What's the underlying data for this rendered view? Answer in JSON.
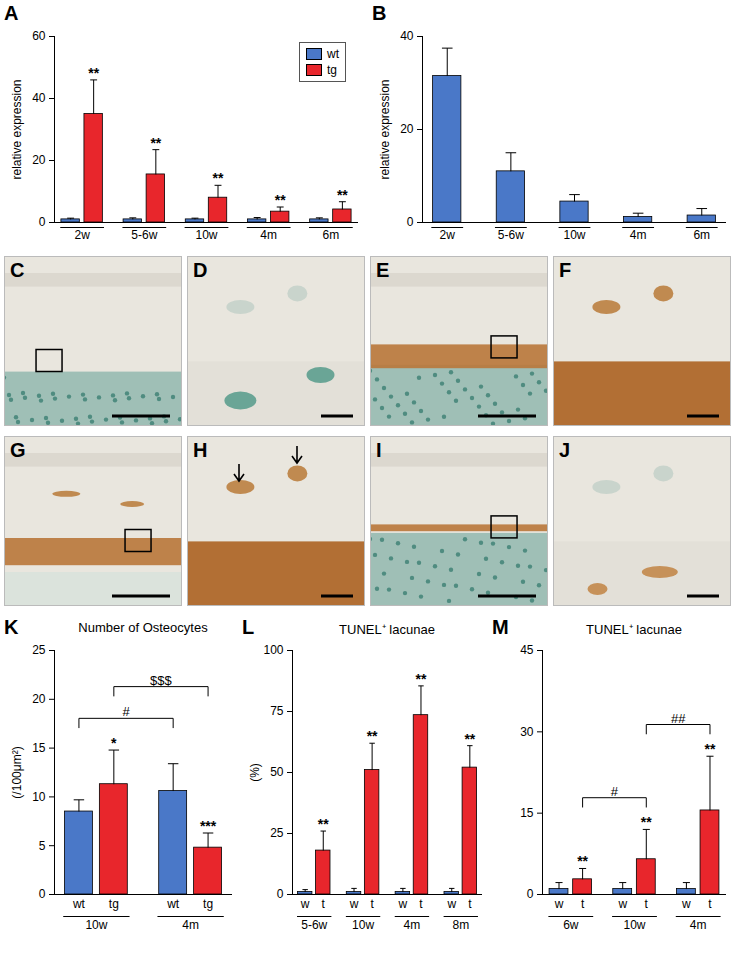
{
  "chart_data": [
    {
      "panel": "A",
      "type": "bar",
      "y_label": "relative expression",
      "categories": [
        "2w",
        "5-6w",
        "10w",
        "4m",
        "6m"
      ],
      "ylim": [
        0,
        60
      ],
      "yticks": [
        0,
        20,
        40,
        60
      ],
      "legend": "top-right",
      "series": [
        {
          "name": "wt",
          "color": "#4a78c8",
          "values": [
            1,
            1,
            1,
            1,
            1
          ],
          "errors": [
            0.4,
            0.5,
            0.4,
            0.6,
            0.5
          ]
        },
        {
          "name": "tg",
          "color": "#e8262c",
          "values": [
            35,
            15.5,
            8,
            3.5,
            4.2
          ],
          "errors": [
            11,
            8,
            4,
            1.5,
            2.5
          ],
          "annotations": [
            "**",
            "**",
            "**",
            "**",
            "**"
          ]
        }
      ]
    },
    {
      "panel": "B",
      "type": "bar",
      "y_label": "relative expression",
      "categories": [
        "2w",
        "5-6w",
        "10w",
        "4m",
        "6m"
      ],
      "ylim": [
        0,
        40
      ],
      "yticks": [
        0,
        20,
        40
      ],
      "series": [
        {
          "color": "#4a78c8",
          "values": [
            31.5,
            11,
            4.5,
            1.2,
            1.5
          ],
          "errors": [
            6,
            4,
            1.5,
            0.8,
            1.5
          ]
        }
      ]
    },
    {
      "panel": "K",
      "type": "bar",
      "title": "Number of Osteocytes",
      "y_label": "(/100μm²)",
      "categories": [
        "10w",
        "4m"
      ],
      "ylim": [
        0,
        25
      ],
      "yticks": [
        0,
        5,
        10,
        15,
        20,
        25
      ],
      "series": [
        {
          "name": "wt",
          "color": "#4a78c8",
          "values": [
            8.5,
            10.6
          ],
          "errors": [
            1.2,
            2.8
          ]
        },
        {
          "name": "tg",
          "color": "#e8262c",
          "values": [
            11.3,
            4.8
          ],
          "errors": [
            3.5,
            1.5
          ],
          "annotations": [
            "*",
            "***"
          ]
        }
      ],
      "comparisons": [
        {
          "from": [
            "wt",
            "10w"
          ],
          "to": [
            "wt",
            "4m"
          ],
          "label": "#"
        },
        {
          "from": [
            "tg",
            "10w"
          ],
          "to": [
            "tg",
            "4m"
          ],
          "label": "$$$"
        }
      ]
    },
    {
      "panel": "L",
      "type": "bar",
      "title": "TUNEL⁺ lacunae",
      "y_label": "(%)",
      "categories": [
        "5-6w",
        "10w",
        "4m",
        "8m"
      ],
      "ylim": [
        0,
        100
      ],
      "yticks": [
        0,
        25,
        50,
        75,
        100
      ],
      "series": [
        {
          "name": "w",
          "color": "#4a78c8",
          "values": [
            1,
            1,
            1,
            1
          ],
          "errors": [
            1,
            1.5,
            1.5,
            1.5
          ]
        },
        {
          "name": "t",
          "color": "#e8262c",
          "values": [
            18,
            51,
            73.5,
            52
          ],
          "errors": [
            8,
            11,
            12,
            9
          ],
          "annotations": [
            "**",
            "**",
            "**",
            "**"
          ]
        }
      ]
    },
    {
      "panel": "M",
      "type": "bar",
      "title": "TUNEL⁺ lacunae",
      "categories": [
        "6w",
        "10w",
        "4m"
      ],
      "ylim": [
        0,
        45
      ],
      "yticks": [
        0,
        15,
        30,
        45
      ],
      "series": [
        {
          "name": "w",
          "color": "#4a78c8",
          "values": [
            1,
            1,
            1
          ],
          "errors": [
            1.2,
            1.2,
            1.2
          ]
        },
        {
          "name": "t",
          "color": "#e8262c",
          "values": [
            2.8,
            6.5,
            15.5
          ],
          "errors": [
            2,
            5.5,
            10
          ],
          "annotations": [
            "**",
            "**",
            "**"
          ]
        }
      ],
      "comparisons": [
        {
          "from": [
            "t",
            "6w"
          ],
          "to": [
            "t",
            "10w"
          ],
          "label": "#"
        },
        {
          "from": [
            "t",
            "10w"
          ],
          "to": [
            "t",
            "4m"
          ],
          "label": "##"
        }
      ]
    }
  ],
  "image_panels": {
    "labels": [
      "C",
      "D",
      "E",
      "F",
      "G",
      "H",
      "I",
      "J"
    ]
  }
}
